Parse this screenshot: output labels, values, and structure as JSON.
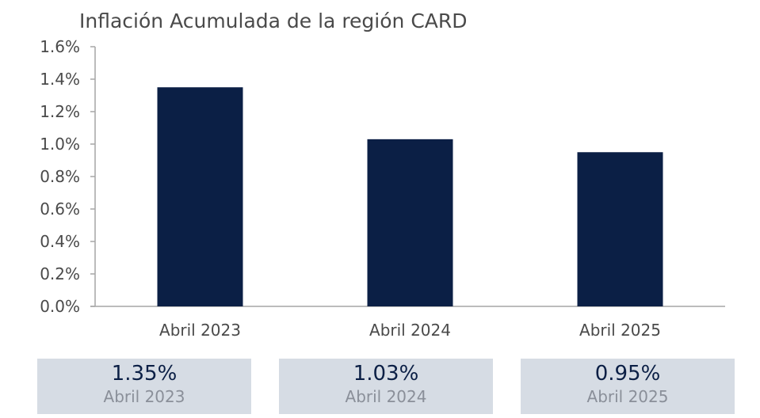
{
  "chart_data": {
    "type": "bar",
    "title": "Inflación Acumulada de la región CARD",
    "categories": [
      "Abril 2023",
      "Abril 2024",
      "Abril 2025"
    ],
    "values": [
      1.35,
      1.03,
      0.95
    ],
    "ylim": [
      0,
      1.6
    ],
    "yticks": [
      "0.0%",
      "0.2%",
      "0.4%",
      "0.6%",
      "0.8%",
      "1.0%",
      "1.2%",
      "1.4%",
      "1.6%"
    ],
    "bar_color": "#0b1f45",
    "grid": false
  },
  "cards": [
    {
      "value": "1.35%",
      "label": "Abril 2023"
    },
    {
      "value": "1.03%",
      "label": "Abril 2024"
    },
    {
      "value": "0.95%",
      "label": "Abril 2025"
    }
  ],
  "colors": {
    "bar": "#0b1f45",
    "card_bg": "#d6dce4",
    "axis": "#a6a6a6"
  }
}
